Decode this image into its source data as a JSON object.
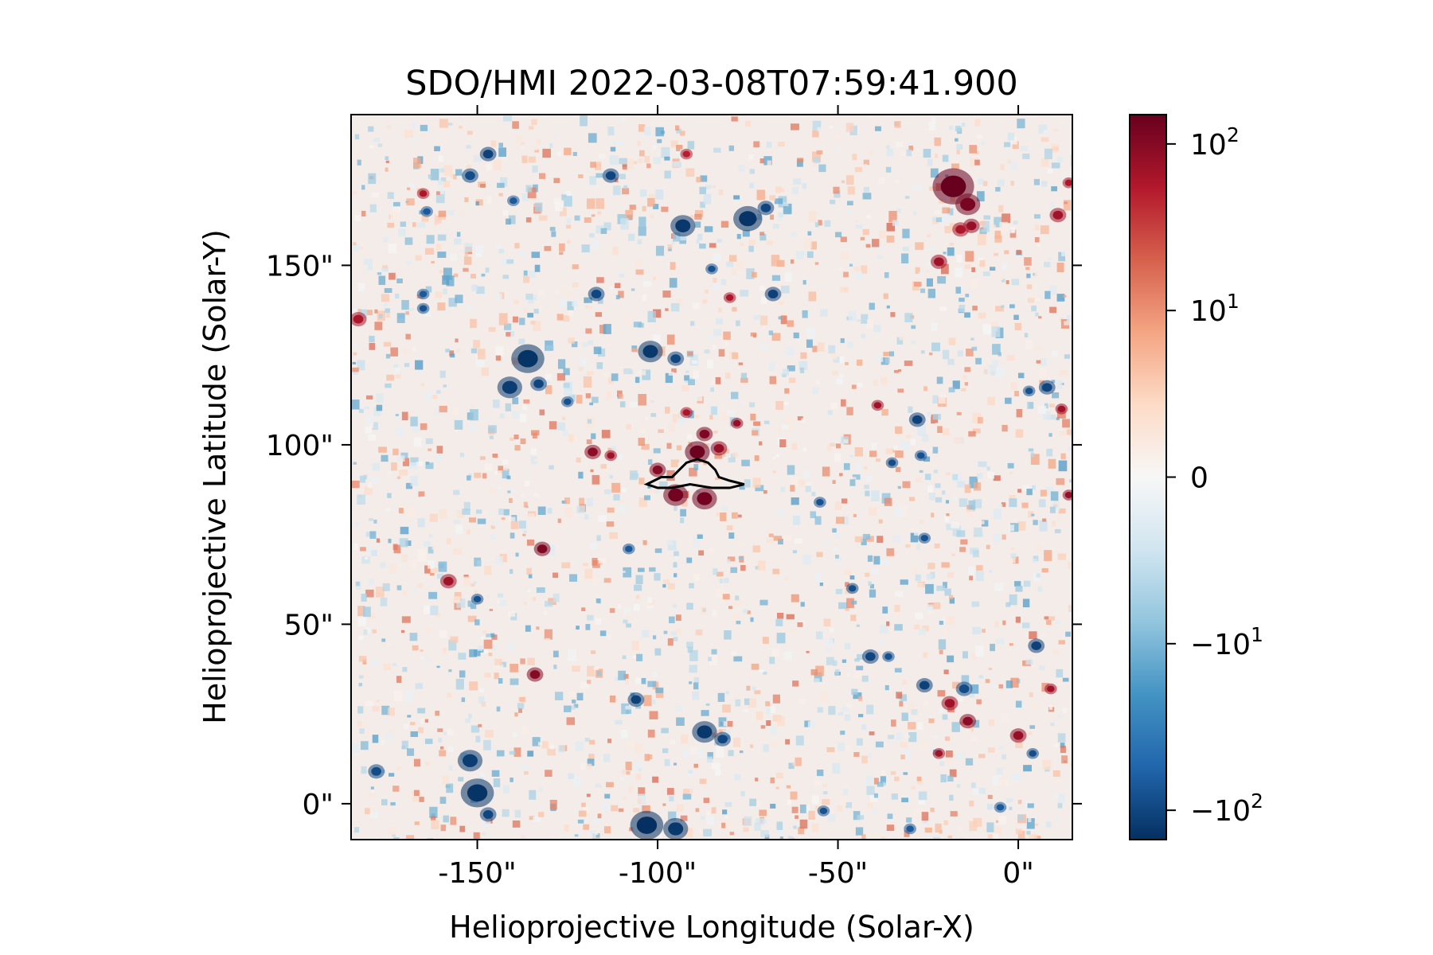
{
  "chart_data": {
    "type": "heatmap",
    "title": "SDO/HMI 2022-03-08T07:59:41.900",
    "xlabel": "Helioprojective Longitude (Solar-X)",
    "ylabel": "Helioprojective Latitude (Solar-Y)",
    "xlim": [
      -185,
      15
    ],
    "ylim": [
      -10,
      192
    ],
    "x_ticks": [
      {
        "value": -150,
        "label": "-150\""
      },
      {
        "value": -100,
        "label": "-100\""
      },
      {
        "value": -50,
        "label": "-50\""
      },
      {
        "value": 0,
        "label": "0\""
      }
    ],
    "y_ticks": [
      {
        "value": 0,
        "label": "0\""
      },
      {
        "value": 50,
        "label": "50\""
      },
      {
        "value": 100,
        "label": "100\""
      },
      {
        "value": 150,
        "label": "150\""
      }
    ],
    "colormap": "RdBu_r",
    "colorbar": {
      "scale": "symlog",
      "linthresh": 10,
      "vmin": -150,
      "vmax": 150,
      "ticks": [
        {
          "value": 100,
          "base": "10",
          "exp": "2",
          "sign": ""
        },
        {
          "value": 10,
          "base": "10",
          "exp": "1",
          "sign": ""
        },
        {
          "value": 0,
          "base": "0",
          "exp": "",
          "sign": ""
        },
        {
          "value": -10,
          "base": "10",
          "exp": "1",
          "sign": "−"
        },
        {
          "value": -100,
          "base": "10",
          "exp": "2",
          "sign": "−"
        }
      ]
    },
    "contour": {
      "color": "#000000",
      "points": [
        [
          -103,
          89
        ],
        [
          -99,
          91
        ],
        [
          -96,
          91
        ],
        [
          -94,
          93
        ],
        [
          -92,
          95
        ],
        [
          -89,
          96
        ],
        [
          -86,
          95
        ],
        [
          -84,
          93
        ],
        [
          -83,
          91
        ],
        [
          -80,
          90
        ],
        [
          -76,
          89
        ],
        [
          -80,
          88
        ],
        [
          -85,
          88
        ],
        [
          -91,
          89
        ],
        [
          -96,
          88
        ],
        [
          -100,
          88
        ]
      ]
    },
    "magnetic_features": [
      {
        "x": -18,
        "y": 172,
        "r": 5,
        "v": 150
      },
      {
        "x": -14,
        "y": 167,
        "r": 3,
        "v": 120
      },
      {
        "x": -13,
        "y": 161,
        "r": 2,
        "v": 80
      },
      {
        "x": -22,
        "y": 151,
        "r": 2,
        "v": 70
      },
      {
        "x": -16,
        "y": 160,
        "r": 2,
        "v": 60
      },
      {
        "x": 11,
        "y": 164,
        "r": 2,
        "v": 70
      },
      {
        "x": 14,
        "y": 173,
        "r": 1.5,
        "v": 60
      },
      {
        "x": -89,
        "y": 98,
        "r": 3,
        "v": 140
      },
      {
        "x": -87,
        "y": 103,
        "r": 2,
        "v": 110
      },
      {
        "x": -95,
        "y": 86,
        "r": 3,
        "v": 130
      },
      {
        "x": -87,
        "y": 85,
        "r": 3,
        "v": 130
      },
      {
        "x": -100,
        "y": 93,
        "r": 2,
        "v": 100
      },
      {
        "x": -83,
        "y": 99,
        "r": 2,
        "v": 80
      },
      {
        "x": -92,
        "y": 109,
        "r": 1.5,
        "v": 60
      },
      {
        "x": -78,
        "y": 106,
        "r": 1.5,
        "v": 80
      },
      {
        "x": -118,
        "y": 98,
        "r": 2,
        "v": 90
      },
      {
        "x": -113,
        "y": 97,
        "r": 1.5,
        "v": 70
      },
      {
        "x": -132,
        "y": 71,
        "r": 2,
        "v": 110
      },
      {
        "x": -134,
        "y": 36,
        "r": 2,
        "v": 100
      },
      {
        "x": -158,
        "y": 62,
        "r": 2,
        "v": 70
      },
      {
        "x": -19,
        "y": 28,
        "r": 2,
        "v": 70
      },
      {
        "x": -14,
        "y": 23,
        "r": 2,
        "v": 90
      },
      {
        "x": 0,
        "y": 19,
        "r": 2,
        "v": 80
      },
      {
        "x": -22,
        "y": 14,
        "r": 1.5,
        "v": 70
      },
      {
        "x": 9,
        "y": 32,
        "r": 1.5,
        "v": 70
      },
      {
        "x": 14,
        "y": 86,
        "r": 1.5,
        "v": 80
      },
      {
        "x": 12,
        "y": 110,
        "r": 1.5,
        "v": 70
      },
      {
        "x": -39,
        "y": 111,
        "r": 1.5,
        "v": 70
      },
      {
        "x": -80,
        "y": 141,
        "r": 1.5,
        "v": 60
      },
      {
        "x": -92,
        "y": 181,
        "r": 1.5,
        "v": 50
      },
      {
        "x": -165,
        "y": 170,
        "r": 1.5,
        "v": 60
      },
      {
        "x": -183,
        "y": 135,
        "r": 2,
        "v": 60
      },
      {
        "x": -150,
        "y": 3,
        "r": 4,
        "v": -140
      },
      {
        "x": -152,
        "y": 12,
        "r": 3,
        "v": -120
      },
      {
        "x": -147,
        "y": -3,
        "r": 2,
        "v": -100
      },
      {
        "x": -103,
        "y": -6,
        "r": 4,
        "v": -150
      },
      {
        "x": -95,
        "y": -7,
        "r": 3,
        "v": -130
      },
      {
        "x": -136,
        "y": 124,
        "r": 4,
        "v": -140
      },
      {
        "x": -141,
        "y": 116,
        "r": 3,
        "v": -120
      },
      {
        "x": -133,
        "y": 117,
        "r": 2,
        "v": -100
      },
      {
        "x": -93,
        "y": 161,
        "r": 3,
        "v": -130
      },
      {
        "x": -75,
        "y": 163,
        "r": 3.5,
        "v": -140
      },
      {
        "x": -70,
        "y": 166,
        "r": 2,
        "v": -100
      },
      {
        "x": -147,
        "y": 181,
        "r": 2,
        "v": -110
      },
      {
        "x": -152,
        "y": 175,
        "r": 2,
        "v": -90
      },
      {
        "x": -164,
        "y": 165,
        "r": 1.5,
        "v": -70
      },
      {
        "x": -113,
        "y": 175,
        "r": 2,
        "v": -100
      },
      {
        "x": -117,
        "y": 142,
        "r": 2,
        "v": -100
      },
      {
        "x": -68,
        "y": 142,
        "r": 2,
        "v": -110
      },
      {
        "x": -102,
        "y": 126,
        "r": 3,
        "v": -130
      },
      {
        "x": -95,
        "y": 124,
        "r": 2,
        "v": -100
      },
      {
        "x": -165,
        "y": 138,
        "r": 1.5,
        "v": -80
      },
      {
        "x": -85,
        "y": 149,
        "r": 1.5,
        "v": -80
      },
      {
        "x": -106,
        "y": 29,
        "r": 2,
        "v": -110
      },
      {
        "x": -87,
        "y": 20,
        "r": 3,
        "v": -130
      },
      {
        "x": -82,
        "y": 18,
        "r": 2,
        "v": -100
      },
      {
        "x": -26,
        "y": 33,
        "r": 2,
        "v": -110
      },
      {
        "x": -15,
        "y": 32,
        "r": 2,
        "v": -90
      },
      {
        "x": -41,
        "y": 41,
        "r": 2,
        "v": -100
      },
      {
        "x": -36,
        "y": 41,
        "r": 1.5,
        "v": -80
      },
      {
        "x": 5,
        "y": 44,
        "r": 2,
        "v": -110
      },
      {
        "x": -28,
        "y": 107,
        "r": 2,
        "v": -110
      },
      {
        "x": -35,
        "y": 95,
        "r": 1.5,
        "v": -90
      },
      {
        "x": -27,
        "y": 97,
        "r": 1.5,
        "v": -80
      },
      {
        "x": 8,
        "y": 116,
        "r": 2,
        "v": -100
      },
      {
        "x": 3,
        "y": 115,
        "r": 1.5,
        "v": -80
      },
      {
        "x": -46,
        "y": 60,
        "r": 1.5,
        "v": -90
      },
      {
        "x": -26,
        "y": 74,
        "r": 1.5,
        "v": -80
      },
      {
        "x": -55,
        "y": 84,
        "r": 1.5,
        "v": -80
      },
      {
        "x": -178,
        "y": 9,
        "r": 2,
        "v": -90
      },
      {
        "x": -150,
        "y": 57,
        "r": 1.5,
        "v": -80
      },
      {
        "x": -140,
        "y": 168,
        "r": 1.5,
        "v": -70
      },
      {
        "x": -165,
        "y": 142,
        "r": 1.5,
        "v": -70
      },
      {
        "x": -54,
        "y": -2,
        "r": 1.5,
        "v": -80
      },
      {
        "x": 4,
        "y": 14,
        "r": 1.5,
        "v": -90
      },
      {
        "x": -5,
        "y": -1,
        "r": 1.5,
        "v": -70
      },
      {
        "x": -30,
        "y": -7,
        "r": 1.5,
        "v": -70
      },
      {
        "x": -108,
        "y": 71,
        "r": 1.5,
        "v": -70
      },
      {
        "x": -125,
        "y": 112,
        "r": 1.5,
        "v": -80
      }
    ]
  }
}
